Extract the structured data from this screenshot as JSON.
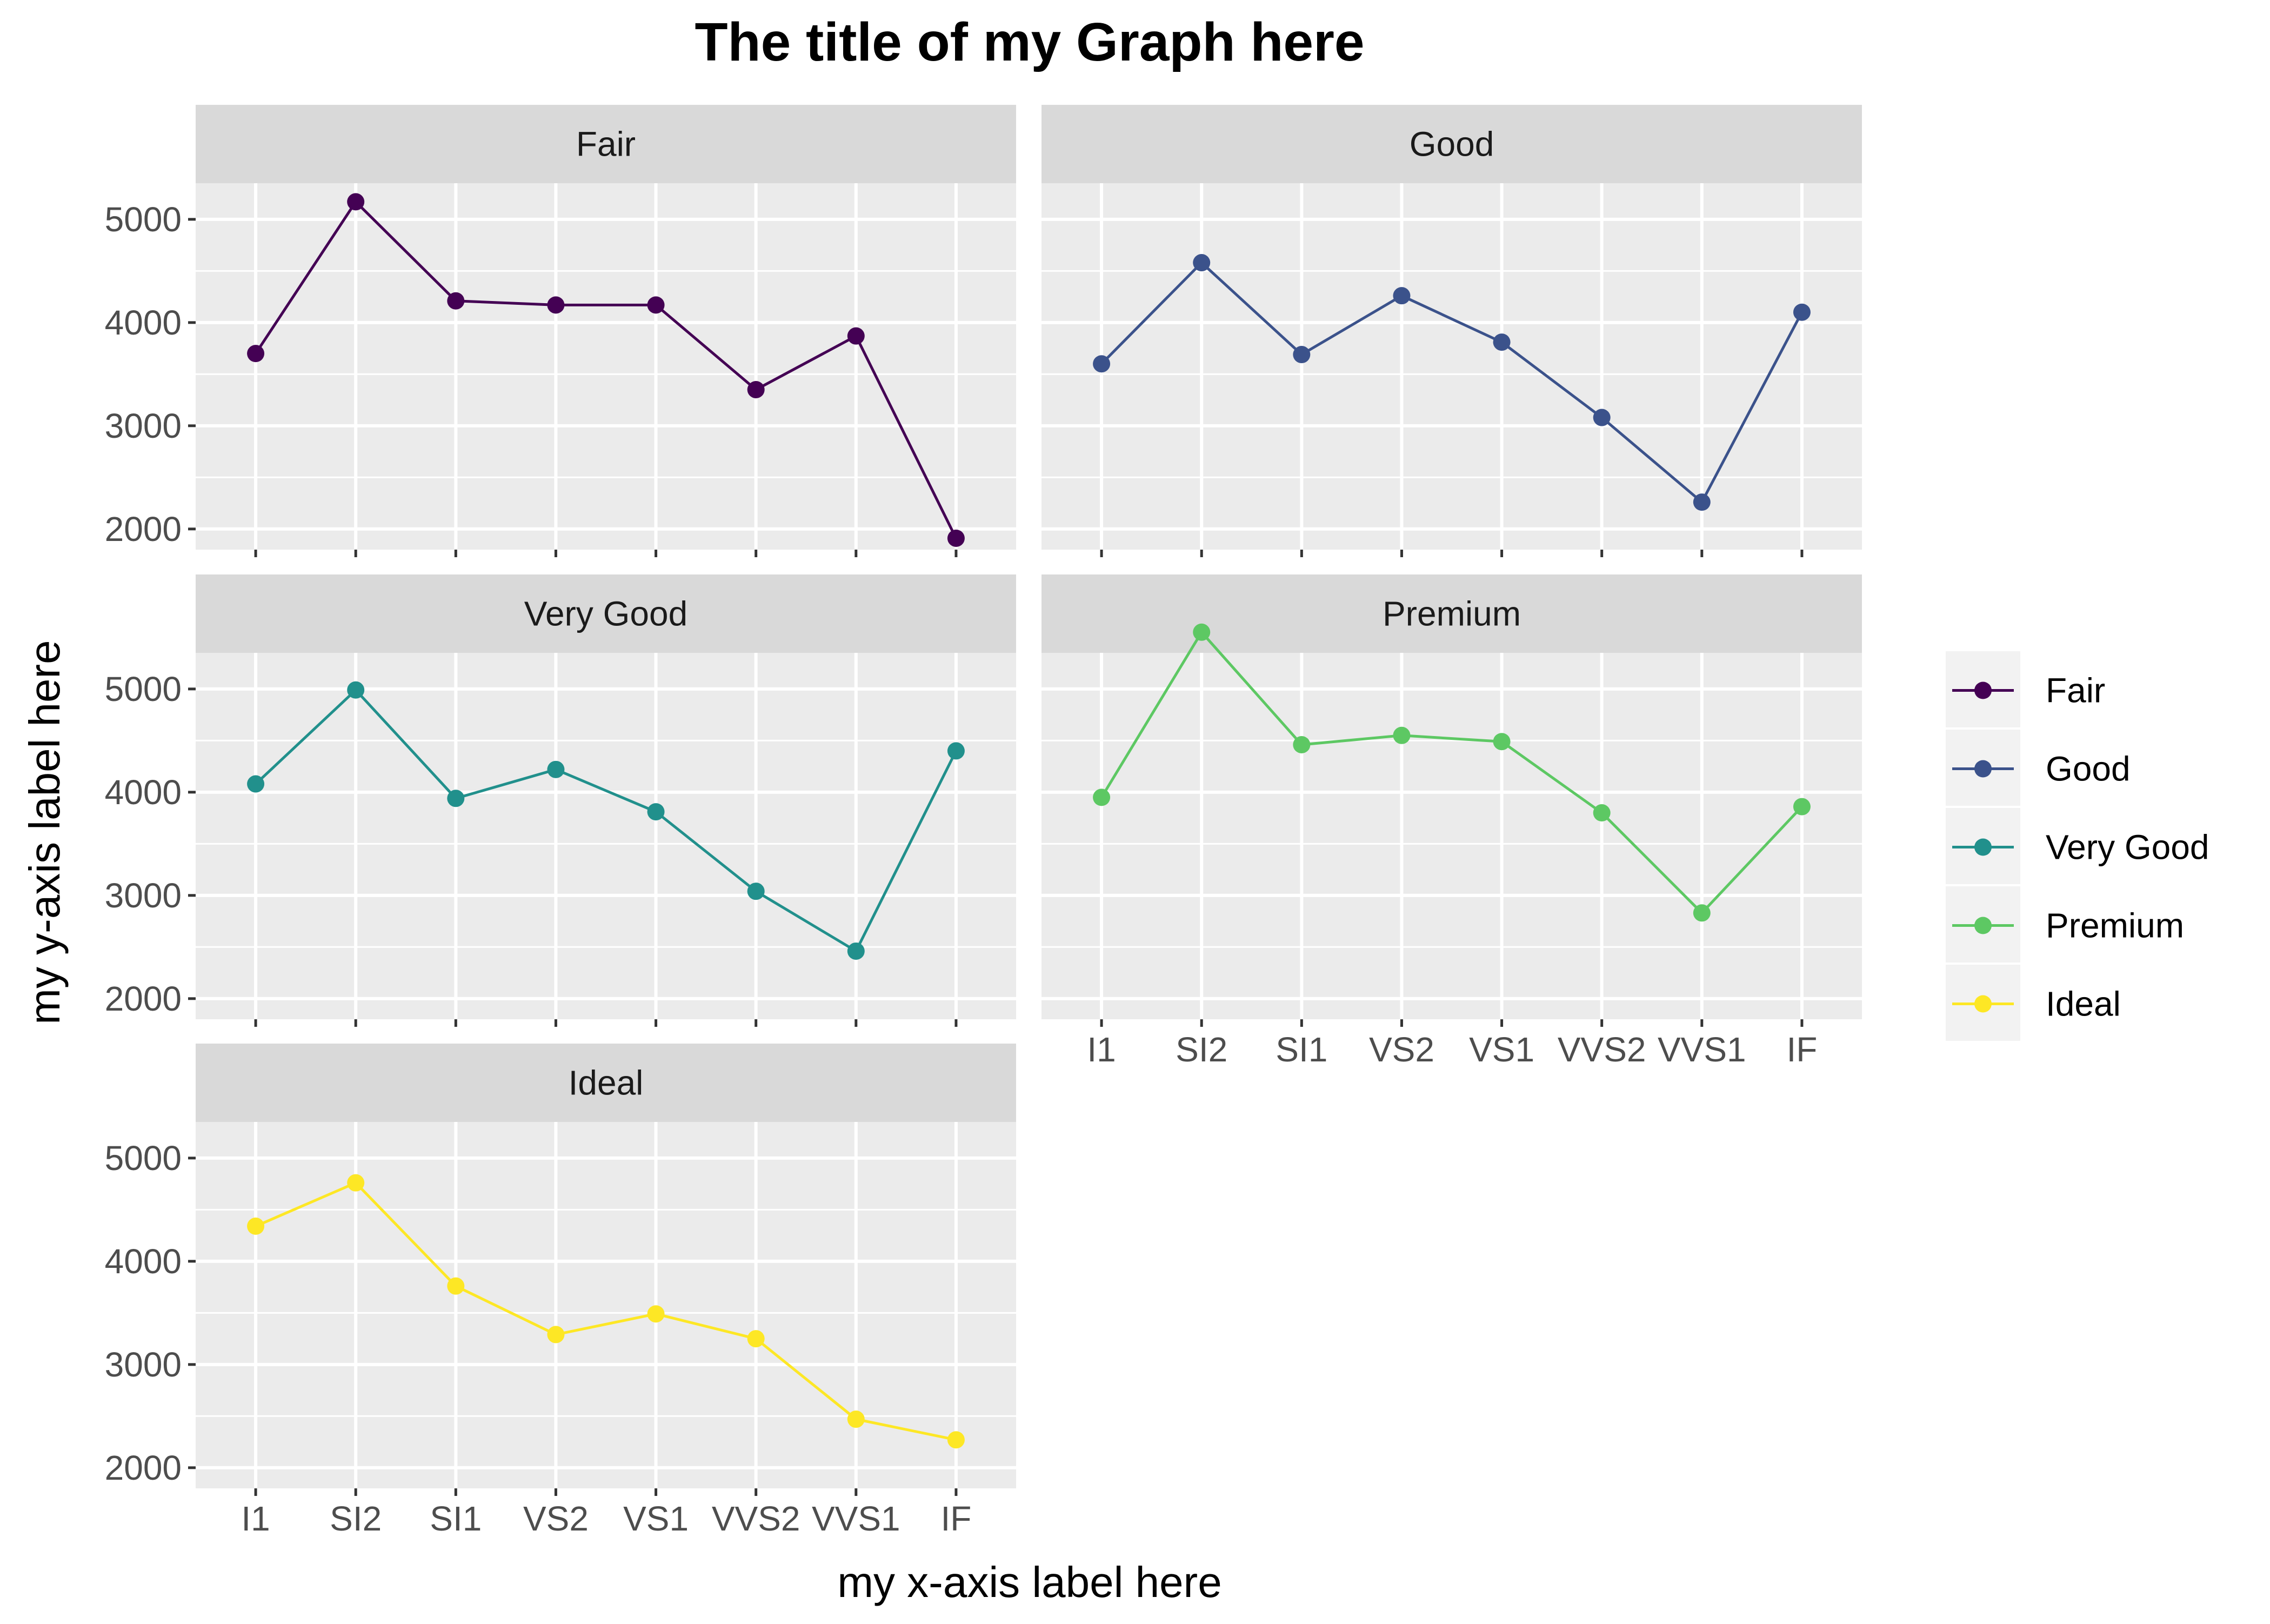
{
  "chart_data": {
    "type": "line",
    "title": "The title of my Graph here",
    "xlabel": "my x-axis label here",
    "ylabel": "my y-axis label here",
    "categories": [
      "I1",
      "SI2",
      "SI1",
      "VS2",
      "VS1",
      "VVS2",
      "VVS1",
      "IF"
    ],
    "y_ticks": [
      "2000",
      "3000",
      "4000",
      "5000"
    ],
    "ylim": [
      1800,
      5350
    ],
    "grid": true,
    "legend_position": "right",
    "facets": [
      {
        "name": "Fair",
        "color": "#440154",
        "values": [
          3700,
          5170,
          4210,
          4170,
          4170,
          3350,
          3870,
          1910
        ]
      },
      {
        "name": "Good",
        "color": "#3B528B",
        "values": [
          3600,
          4580,
          3690,
          4260,
          3810,
          3080,
          2260,
          4100
        ]
      },
      {
        "name": "Very Good",
        "color": "#21908C",
        "values": [
          4080,
          4990,
          3940,
          4220,
          3810,
          3040,
          2460,
          4400
        ]
      },
      {
        "name": "Premium",
        "color": "#5DC863",
        "values": [
          3950,
          5550,
          4460,
          4550,
          4490,
          3800,
          2830,
          3860
        ]
      },
      {
        "name": "Ideal",
        "color": "#FDE725",
        "values": [
          4340,
          4760,
          3760,
          3290,
          3490,
          3250,
          2470,
          2270
        ]
      }
    ]
  }
}
